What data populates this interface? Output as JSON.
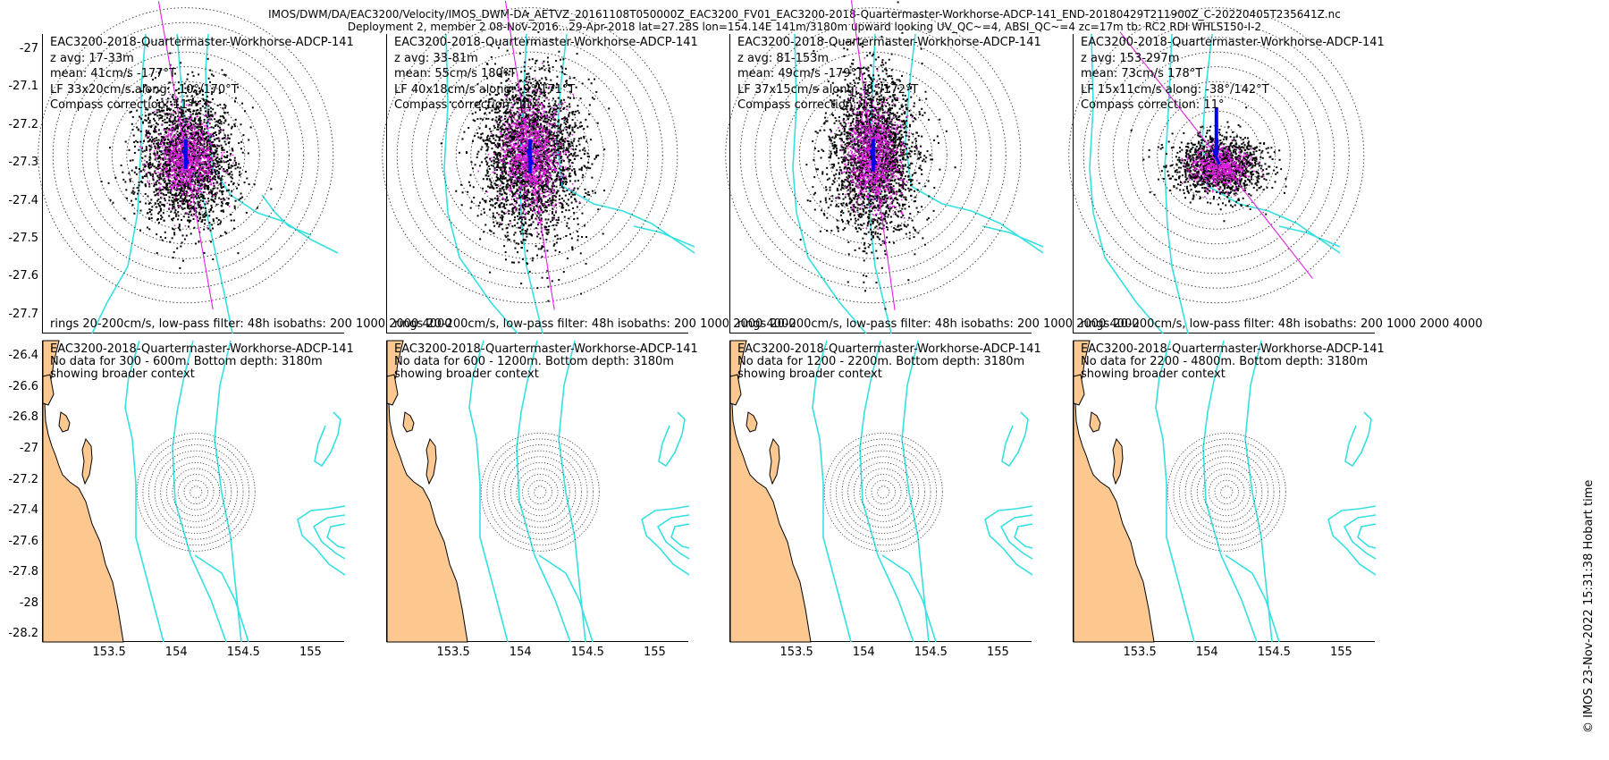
{
  "header": {
    "title": "IMOS/DWM/DA/EAC3200/Velocity/IMOS_DWM-DA_AETVZ_20161108T050000Z_EAC3200_FV01_EAC3200-2018-Quartermaster-Workhorse-ADCP-141_END-20180429T211900Z_C-20220405T235641Z.nc",
    "subtitle": "Deployment 2, member 2 08-Nov-2016...29-Apr-2018 lat=27.28S lon=154.14E 141m/3180m upward looking UV_QC~=4, ABSI_QC~=4 zc=17m tb: RC2 RDI WHLS150-I-2"
  },
  "stamp": "© IMOS 23-Nov-2022 15:31:38 Hobart time",
  "colors": {
    "isobath": "#35e0e0",
    "land": "#fcc890",
    "raw_points": "#000000",
    "lowpass_points": "#e020e0",
    "mean_arrow": "#0000ee",
    "major_axis": "#e020e0",
    "rings": "#333333"
  },
  "chart_data": [
    {
      "type": "scatter",
      "panel": "top-1",
      "title": "EAC3200-2018-Quartermaster-Workhorse-ADCP-141",
      "stats": [
        "z avg: 17-33m",
        "mean: 41cm/s -177°T",
        "LF 33x20cm/s along: -10°/170°T",
        "Compass correction: 11°"
      ],
      "footer": "rings 20-200cm/s, low-pass filter: 48h isobaths: 200 1000 2000 4000",
      "center": [
        154.14,
        -27.28
      ],
      "mean_speed_cms": 41,
      "mean_dir_degT": -177,
      "lf_major_cms": 33,
      "lf_minor_cms": 20,
      "along_deg": -10,
      "ylim": [
        -27.75,
        -26.96
      ],
      "yticks": [
        -27,
        -27.1,
        -27.2,
        -27.3,
        -27.4,
        -27.5,
        -27.6,
        -27.7
      ]
    },
    {
      "type": "scatter",
      "panel": "top-2",
      "title": "EAC3200-2018-Quartermaster-Workhorse-ADCP-141",
      "stats": [
        "z avg: 33-81m",
        "mean: 55cm/s 180°T",
        "LF 40x18cm/s along: -9°/171°T",
        "Compass correction: 11°"
      ],
      "footer": "rings 20-200cm/s, low-pass filter: 48h isobaths: 200 1000 2000 4000",
      "center": [
        154.14,
        -27.28
      ],
      "mean_speed_cms": 55,
      "mean_dir_degT": 180,
      "lf_major_cms": 40,
      "lf_minor_cms": 18,
      "along_deg": -9,
      "ylim": [
        -27.75,
        -26.96
      ]
    },
    {
      "type": "scatter",
      "panel": "top-3",
      "title": "EAC3200-2018-Quartermaster-Workhorse-ADCP-141",
      "stats": [
        "z avg: 81-153m",
        "mean: 49cm/s -179°T",
        "LF 37x15cm/s along: -8°/172°T",
        "Compass correction: 11°"
      ],
      "footer": "rings 20-200cm/s, low-pass filter: 48h isobaths: 200 1000 2000 4000",
      "center": [
        154.14,
        -27.28
      ],
      "mean_speed_cms": 49,
      "mean_dir_degT": -179,
      "lf_major_cms": 37,
      "lf_minor_cms": 15,
      "along_deg": -8,
      "ylim": [
        -27.75,
        -26.96
      ]
    },
    {
      "type": "scatter",
      "panel": "top-4",
      "title": "EAC3200-2018-Quartermaster-Workhorse-ADCP-141",
      "stats": [
        "z avg: 153-297m",
        "mean: 73cm/s 178°T",
        "LF 15x11cm/s along: -38°/142°T",
        "Compass correction: 11°"
      ],
      "footer": "rings 20-200cm/s, low-pass filter: 48h isobaths: 200 1000 2000 4000",
      "center": [
        154.14,
        -27.28
      ],
      "mean_speed_cms": 73,
      "mean_dir_degT": 178,
      "lf_major_cms": 15,
      "lf_minor_cms": 11,
      "along_deg": -38,
      "ylim": [
        -27.75,
        -26.96
      ]
    },
    {
      "type": "map",
      "panel": "bottom-1",
      "title": "EAC3200-2018-Quartermaster-Workhorse-ADCP-141",
      "notes": [
        "No data for 300 - 600m. Bottom depth: 3180m",
        "showing broader context"
      ],
      "xlim": [
        153.0,
        155.25
      ],
      "ylim": [
        -28.25,
        -26.3
      ],
      "center": [
        154.14,
        -27.28
      ],
      "xticks": [
        153.5,
        154,
        154.5,
        155
      ],
      "yticks": [
        -26.4,
        -26.6,
        -26.8,
        -27,
        -27.2,
        -27.4,
        -27.6,
        -27.8,
        -28,
        -28.2
      ]
    },
    {
      "type": "map",
      "panel": "bottom-2",
      "title": "EAC3200-2018-Quartermaster-Workhorse-ADCP-141",
      "notes": [
        "No data for 600 - 1200m. Bottom depth: 3180m",
        "showing broader context"
      ],
      "xlim": [
        153.0,
        155.25
      ],
      "ylim": [
        -28.25,
        -26.3
      ],
      "center": [
        154.14,
        -27.28
      ],
      "xticks": [
        153.5,
        154,
        154.5,
        155
      ]
    },
    {
      "type": "map",
      "panel": "bottom-3",
      "title": "EAC3200-2018-Quartermaster-Workhorse-ADCP-141",
      "notes": [
        "No data for 1200 - 2200m. Bottom depth: 3180m",
        "showing broader context"
      ],
      "xlim": [
        153.0,
        155.25
      ],
      "ylim": [
        -28.25,
        -26.3
      ],
      "center": [
        154.14,
        -27.28
      ],
      "xticks": [
        153.5,
        154,
        154.5,
        155
      ]
    },
    {
      "type": "map",
      "panel": "bottom-4",
      "title": "EAC3200-2018-Quartermaster-Workhorse-ADCP-141",
      "notes": [
        "No data for 2200 - 4800m. Bottom depth: 3180m",
        "showing broader context"
      ],
      "xlim": [
        153.0,
        155.25
      ],
      "ylim": [
        -28.25,
        -26.3
      ],
      "center": [
        154.14,
        -27.28
      ],
      "xticks": [
        153.5,
        154,
        154.5,
        155
      ]
    }
  ]
}
